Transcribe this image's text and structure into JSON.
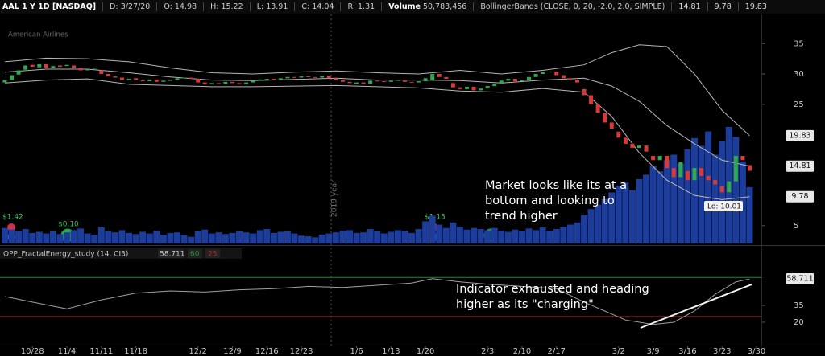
{
  "header": {
    "symbol": "AAL 1 Y 1D [NASDAQ]",
    "date_label": "D:",
    "date": "3/27/20",
    "open_label": "O:",
    "high_label": "H:",
    "high": 15.22,
    "low_label": "L:",
    "low": 13.91,
    "close_label": "C:",
    "range_label": "R:",
    "range": 1.31,
    "volume_label": "Volume",
    "volume": "50,783,456",
    "study": "BollingerBands (CLOSE, 0, 20, -2.0, 2.0, SIMPLE)",
    "logo": "American Airlines",
    "lower_study": "OPP_FractalEnergy_study (14, CI3)"
  },
  "annotations": {
    "market": "Market looks like its at a bottom and looking to trend higher",
    "indicator": "Indicator exhausted and heading higher as its \"charging\"",
    "low": "Lo: 10.01",
    "year": "2019 year",
    "earnings": [
      "$1.42",
      "$0.10",
      "$1.15"
    ]
  },
  "chart_data": [
    {
      "type": "candlestick",
      "xlim": [
        -0.7,
        109.7
      ],
      "xticks": [
        {
          "value": 4,
          "label": "10/28"
        },
        {
          "value": 9,
          "label": "11/4"
        },
        {
          "value": 14,
          "label": "11/11"
        },
        {
          "value": 19,
          "label": "11/18"
        },
        {
          "value": 28,
          "label": "12/2"
        },
        {
          "value": 33,
          "label": "12/9"
        },
        {
          "value": 38,
          "label": "12/16"
        },
        {
          "value": 43,
          "label": "12/23"
        },
        {
          "value": 51,
          "label": "1/6"
        },
        {
          "value": 56,
          "label": "1/13"
        },
        {
          "value": 61,
          "label": "1/20"
        },
        {
          "value": 70,
          "label": "2/3"
        },
        {
          "value": 75,
          "label": "2/10"
        },
        {
          "value": 80,
          "label": "2/17"
        },
        {
          "value": 89,
          "label": "3/2"
        },
        {
          "value": 94,
          "label": "3/9"
        },
        {
          "value": 99,
          "label": "3/16"
        },
        {
          "value": 104,
          "label": "3/23"
        },
        {
          "value": 109,
          "label": "3/30"
        }
      ],
      "ylim": [
        1.8,
        39.8
      ],
      "yticks": [
        5,
        25,
        30,
        35
      ],
      "up_color": "#2fa84f",
      "down_color": "#d83a3a",
      "open": [
        28.6,
        29.0,
        29.9,
        30.7,
        31.5,
        31.1,
        31.6,
        31.0,
        31.4,
        31.3,
        31.4,
        31.0,
        30.6,
        30.9,
        30.6,
        30.0,
        29.6,
        29.4,
        29.0,
        29.3,
        29.0,
        28.8,
        29.1,
        28.7,
        28.9,
        29.0,
        29.3,
        29.4,
        29.2,
        28.6,
        28.3,
        28.5,
        28.4,
        28.7,
        28.5,
        28.3,
        28.6,
        28.9,
        29.1,
        29.2,
        29.0,
        29.3,
        29.5,
        29.4,
        29.6,
        29.5,
        29.4,
        29.7,
        29.3,
        29.0,
        28.7,
        28.4,
        28.6,
        28.4,
        28.9,
        28.8,
        28.7,
        28.9,
        29.0,
        28.7,
        28.6,
        28.8,
        29.0,
        30.0,
        29.5,
        28.5,
        27.8,
        27.5,
        27.9,
        27.3,
        27.6,
        28.0,
        28.4,
        28.9,
        29.2,
        28.8,
        29.0,
        29.5,
        30.0,
        30.3,
        30.4,
        29.8,
        29.3,
        29.0,
        27.5,
        26.5,
        25.0,
        23.6,
        22.0,
        20.5,
        19.5,
        18.5,
        17.8,
        18.2,
        16.5,
        15.8,
        16.5,
        14.5,
        13.0,
        14.0,
        12.5,
        14.5,
        13.2,
        12.5,
        11.5,
        10.5,
        12.3,
        16.5,
        14.98
      ],
      "close": [
        29.0,
        29.8,
        30.6,
        31.4,
        31.2,
        31.6,
        31.0,
        31.3,
        31.2,
        31.5,
        31.0,
        30.6,
        30.8,
        31.0,
        30.0,
        29.6,
        29.4,
        29.0,
        29.2,
        29.0,
        28.8,
        29.1,
        28.7,
        28.9,
        29.0,
        29.3,
        29.4,
        29.2,
        28.6,
        28.3,
        28.5,
        28.4,
        28.7,
        28.5,
        28.3,
        28.6,
        28.9,
        29.1,
        29.2,
        29.0,
        29.3,
        29.5,
        29.4,
        29.6,
        29.5,
        29.4,
        29.7,
        29.3,
        29.0,
        28.7,
        28.5,
        28.6,
        28.4,
        28.9,
        28.8,
        28.7,
        28.9,
        29.0,
        28.7,
        28.6,
        28.8,
        29.3,
        30.0,
        29.5,
        29.2,
        27.8,
        27.5,
        27.9,
        27.3,
        27.6,
        28.0,
        28.4,
        28.9,
        29.2,
        28.8,
        29.0,
        29.5,
        30.0,
        30.3,
        30.4,
        29.8,
        29.3,
        29.0,
        28.6,
        26.5,
        25.0,
        23.6,
        22.0,
        21.0,
        19.5,
        18.5,
        17.8,
        18.2,
        17.2,
        15.8,
        16.5,
        14.5,
        13.0,
        15.5,
        12.5,
        14.5,
        13.2,
        12.5,
        11.8,
        10.5,
        12.3,
        16.5,
        15.8,
        14.04
      ],
      "volume": {
        "color": "#1c3d9c",
        "values": [
          14000000,
          12500000,
          11000000,
          13000000,
          9500000,
          10500000,
          9000000,
          11000000,
          8500000,
          10000000,
          12000000,
          13500000,
          9000000,
          8000000,
          14500000,
          11000000,
          10000000,
          12000000,
          9500000,
          8500000,
          10500000,
          9000000,
          11500000,
          8000000,
          9500000,
          10000000,
          7500000,
          6000000,
          11000000,
          12500000,
          9000000,
          10000000,
          8500000,
          9500000,
          11000000,
          10000000,
          9000000,
          12000000,
          13000000,
          9500000,
          10500000,
          11000000,
          9000000,
          7000000,
          6500000,
          5500000,
          8000000,
          9000000,
          10000000,
          11500000,
          12000000,
          9500000,
          10000000,
          13000000,
          11000000,
          9000000,
          10500000,
          12000000,
          11500000,
          9500000,
          13000000,
          20000000,
          25000000,
          17000000,
          14000000,
          19000000,
          15000000,
          12500000,
          14000000,
          13000000,
          12000000,
          14000000,
          11500000,
          10500000,
          12500000,
          11000000,
          13500000,
          12000000,
          14500000,
          11500000,
          13000000,
          15000000,
          17000000,
          19000000,
          26000000,
          31000000,
          35000000,
          40000000,
          46000000,
          52000000,
          55000000,
          48000000,
          58000000,
          62000000,
          70000000,
          65000000,
          75000000,
          80000000,
          72000000,
          85000000,
          95000000,
          88000000,
          101000000,
          80000000,
          92000000,
          105000000,
          96000000,
          74000000,
          50783456
        ]
      },
      "bands": {
        "color": "#b5b5b5",
        "x": [
          0,
          6,
          12,
          18,
          24,
          30,
          36,
          42,
          48,
          54,
          60,
          66,
          72,
          78,
          84,
          88,
          92,
          96,
          100,
          104,
          108
        ],
        "series": [
          {
            "values": [
              32.0,
              32.6,
              32.5,
              32.0,
              31.0,
              30.2,
              30.0,
              30.3,
              30.5,
              30.2,
              30.0,
              30.6,
              30.0,
              30.6,
              31.5,
              33.5,
              34.8,
              34.5,
              30.0,
              24.0,
              19.83
            ]
          },
          {
            "values": [
              30.3,
              30.8,
              30.8,
              30.2,
              29.5,
              29.0,
              28.9,
              29.1,
              29.3,
              29.0,
              29.0,
              28.9,
              28.5,
              29.0,
              29.3,
              28.0,
              25.5,
              21.5,
              18.5,
              15.8,
              14.81
            ]
          },
          {
            "values": [
              28.5,
              29.0,
              29.2,
              28.3,
              28.1,
              27.9,
              27.9,
              28.0,
              28.1,
              27.9,
              27.7,
              27.2,
              27.0,
              27.6,
              27.0,
              23.0,
              17.0,
              12.5,
              10.0,
              9.3,
              9.78
            ]
          }
        ]
      }
    },
    {
      "type": "line",
      "color": "#a0a0a0",
      "x": [
        0,
        4,
        9,
        14,
        19,
        24,
        29,
        34,
        39,
        44,
        49,
        54,
        59,
        62,
        66,
        70,
        75,
        80,
        84,
        87,
        90,
        94,
        97,
        100,
        103,
        106,
        108
      ],
      "values": [
        43,
        38,
        32,
        40,
        46,
        48,
        47,
        49,
        50,
        52,
        51,
        53,
        55,
        59,
        56,
        54,
        52,
        50,
        38,
        30,
        22,
        18,
        20,
        30,
        45,
        56,
        58.711
      ],
      "ylim": [
        0.6,
        76.7
      ],
      "yticks": [
        20,
        35
      ],
      "levels": [
        60,
        25
      ],
      "level_colors": [
        "#1e8a34",
        "#b52a2a"
      ]
    }
  ]
}
